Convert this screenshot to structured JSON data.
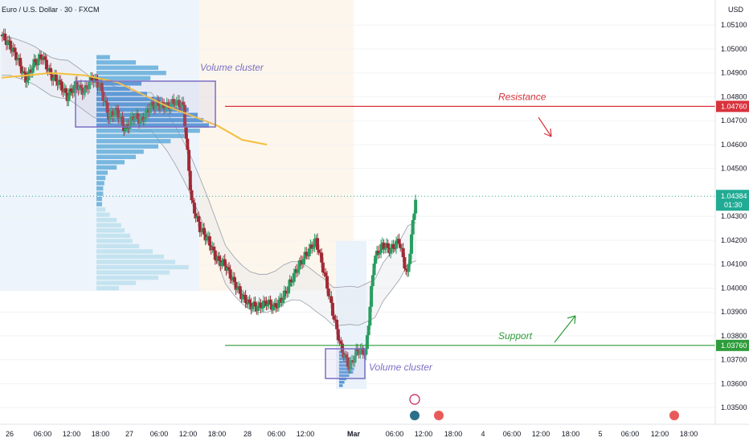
{
  "chart_data": {
    "type": "candlestick",
    "symbol_title": "Euro / U.S. Dollar · 30 · FXCM",
    "currency": "USD",
    "y_axis": {
      "min": 1.0343,
      "max": 1.05205,
      "ticks": [
        "1.05100",
        "1.05000",
        "1.04900",
        "1.04800",
        "1.04700",
        "1.04600",
        "1.04500",
        "1.04300",
        "1.04200",
        "1.04100",
        "1.04000",
        "1.03900",
        "1.03800",
        "1.03700",
        "1.03600",
        "1.03500"
      ]
    },
    "x_axis": {
      "ticks": [
        {
          "label": "26",
          "pos": 0.0
        },
        {
          "label": "06:00",
          "pos": 0.05
        },
        {
          "label": "12:00",
          "pos": 0.1
        },
        {
          "label": "18:00",
          "pos": 0.15
        },
        {
          "label": "27",
          "pos": 0.2
        },
        {
          "label": "06:00",
          "pos": 0.25
        },
        {
          "label": "12:00",
          "pos": 0.3
        },
        {
          "label": "18:00",
          "pos": 0.35
        },
        {
          "label": "28",
          "pos": 0.4
        },
        {
          "label": "06:00",
          "pos": 0.45
        },
        {
          "label": "12:00",
          "pos": 0.5
        },
        {
          "label": "Mar",
          "pos": 0.59
        },
        {
          "label": "06:00",
          "pos": 0.66
        },
        {
          "label": "12:00",
          "pos": 0.71
        },
        {
          "label": "18:00",
          "pos": 0.76
        },
        {
          "label": "4",
          "pos": 0.81
        },
        {
          "label": "06:00",
          "pos": 0.86
        },
        {
          "label": "12:00",
          "pos": 0.91
        },
        {
          "label": "18:00",
          "pos": 0.96
        },
        {
          "label": "5",
          "pos": 1.01
        },
        {
          "label": "06:00",
          "pos": 1.06
        },
        {
          "label": "12:00",
          "pos": 1.11
        },
        {
          "label": "18:00",
          "pos": 1.16
        }
      ]
    },
    "current_price": {
      "label": "1.04384",
      "countdown": "01:30",
      "value": 1.04384,
      "color": "#22ab94"
    },
    "levels": [
      {
        "name": "Resistance",
        "value": 1.0476,
        "label": "1.04760",
        "color": "#d8323c"
      },
      {
        "name": "Support",
        "value": 1.0376,
        "label": "1.03760",
        "color": "#2e9c3a"
      }
    ],
    "annotations": [
      "Volume cluster",
      "Volume cluster"
    ],
    "series": [
      {
        "name": "price",
        "points": [
          [
            0,
            1.0506
          ],
          [
            0.02,
            1.0502
          ],
          [
            0.04,
            1.0496
          ],
          [
            0.06,
            1.0487
          ],
          [
            0.08,
            1.0494
          ],
          [
            0.1,
            1.0497
          ],
          [
            0.12,
            1.0489
          ],
          [
            0.14,
            1.0486
          ],
          [
            0.16,
            1.048
          ],
          [
            0.18,
            1.0485
          ],
          [
            0.2,
            1.0482
          ],
          [
            0.22,
            1.0488
          ],
          [
            0.24,
            1.0484
          ],
          [
            0.26,
            1.0472
          ],
          [
            0.28,
            1.0474
          ],
          [
            0.3,
            1.0466
          ],
          [
            0.32,
            1.0472
          ],
          [
            0.34,
            1.047
          ],
          [
            0.36,
            1.0476
          ],
          [
            0.38,
            1.0477
          ],
          [
            0.4,
            1.0476
          ],
          [
            0.42,
            1.0478
          ],
          [
            0.44,
            1.0476
          ],
          [
            0.46,
            1.0436
          ],
          [
            0.48,
            1.0425
          ],
          [
            0.5,
            1.042
          ],
          [
            0.52,
            1.0412
          ],
          [
            0.54,
            1.041
          ],
          [
            0.56,
            1.0403
          ],
          [
            0.58,
            1.0397
          ],
          [
            0.6,
            1.0393
          ],
          [
            0.62,
            1.0392
          ],
          [
            0.64,
            1.0394
          ],
          [
            0.66,
            1.0392
          ],
          [
            0.68,
            1.0396
          ],
          [
            0.7,
            1.0403
          ],
          [
            0.72,
            1.041
          ],
          [
            0.74,
            1.0415
          ],
          [
            0.76,
            1.042
          ],
          [
            0.78,
            1.0406
          ],
          [
            0.8,
            1.039
          ],
          [
            0.82,
            1.0375
          ],
          [
            0.84,
            1.0367
          ],
          [
            0.86,
            1.0374
          ],
          [
            0.88,
            1.0373
          ],
          [
            0.9,
            1.0412
          ],
          [
            0.92,
            1.0418
          ],
          [
            0.94,
            1.0416
          ],
          [
            0.96,
            1.042
          ],
          [
            0.98,
            1.0405
          ],
          [
            1.0,
            1.0438
          ]
        ]
      }
    ],
    "moving_average": [
      [
        0,
        1.0488
      ],
      [
        0.06,
        1.0489
      ],
      [
        0.12,
        1.049
      ],
      [
        0.2,
        1.0489
      ],
      [
        0.28,
        1.0486
      ],
      [
        0.34,
        1.0481
      ],
      [
        0.4,
        1.0476
      ],
      [
        0.46,
        1.0472
      ],
      [
        0.52,
        1.0468
      ],
      [
        0.58,
        1.0462
      ],
      [
        0.64,
        1.046
      ]
    ],
    "volume_profile_1_values": [
      0.12,
      0.35,
      0.55,
      0.62,
      0.48,
      0.4,
      0.3,
      0.45,
      0.58,
      0.7,
      0.82,
      0.9,
      0.95,
      1.0,
      0.92,
      0.78,
      0.66,
      0.55,
      0.42,
      0.35,
      0.25,
      0.18,
      0.1,
      0.08,
      0.07,
      0.06,
      0.06,
      0.05,
      0.05,
      0.08,
      0.12,
      0.18,
      0.22,
      0.25,
      0.3,
      0.32,
      0.38,
      0.5,
      0.6,
      0.7,
      0.82,
      0.65,
      0.55,
      0.35,
      0.2
    ],
    "volume_profile_2_values": [
      0.2,
      0.35,
      0.45,
      0.55,
      0.5,
      0.62,
      0.58,
      0.42,
      0.3,
      0.22,
      0.15
    ]
  }
}
